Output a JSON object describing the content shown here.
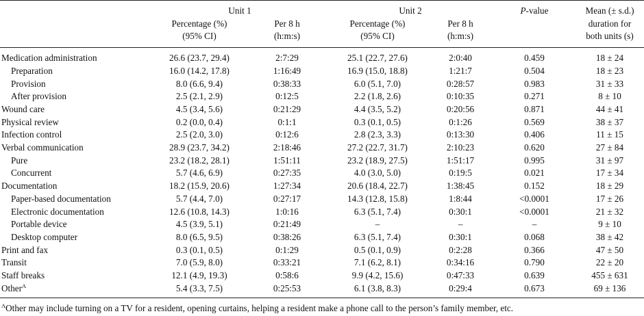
{
  "header": {
    "unit1": "Unit 1",
    "unit2": "Unit 2",
    "pct_l1": "Percentage (%)",
    "pct_l2": "(95% CI)",
    "per_l1": "Per 8 h",
    "per_l2": "(h:m:s)",
    "p_italic": "P",
    "p_rest": "-value",
    "mean_l1": "Mean (± s.d.)",
    "mean_l2": "duration for",
    "mean_l3": "both units (s)"
  },
  "rows": [
    {
      "activity": "Medication administration",
      "u1_pct": "26.6 (23.7, 29.4)",
      "u1_per": "2:7:29",
      "u2_pct": "25.1 (22.7, 27.6)",
      "u2_per": "2:0:40",
      "p": "0.459",
      "mean": "18 ± 24"
    },
    {
      "activity": "Preparation",
      "u1_pct": "16.0 (14.2, 17.8)",
      "u1_per": "1:16:49",
      "u2_pct": "16.9 (15.0, 18.8)",
      "u2_per": "1:21:7",
      "p": "0.504",
      "mean": "18 ± 23"
    },
    {
      "activity": "Provision",
      "u1_pct": "8.0 (6.6, 9.4)",
      "u1_per": "0:38:33",
      "u2_pct": "6.0 (5.1, 7.0)",
      "u2_per": "0:28:57",
      "p": "0.983",
      "mean": "31 ± 33"
    },
    {
      "activity": "After provision",
      "u1_pct": "2.5 (2.1, 2.9)",
      "u1_per": "0:12:5",
      "u2_pct": "2.2 (1.8, 2.6)",
      "u2_per": "0:10:35",
      "p": "0.271",
      "mean": "8 ± 10"
    },
    {
      "activity": "Wound care",
      "u1_pct": "4.5 (3.4, 5.6)",
      "u1_per": "0:21:29",
      "u2_pct": "4.4 (3.5, 5.2)",
      "u2_per": "0:20:56",
      "p": "0.871",
      "mean": "44 ± 41"
    },
    {
      "activity": "Physical review",
      "u1_pct": "0.2 (0.0, 0.4)",
      "u1_per": "0:1:1",
      "u2_pct": "0.3 (0.1, 0.5)",
      "u2_per": "0:1:26",
      "p": "0.569",
      "mean": "38 ± 37"
    },
    {
      "activity": "Infection control",
      "u1_pct": "2.5 (2.0, 3.0)",
      "u1_per": "0:12:6",
      "u2_pct": "2.8 (2.3, 3.3)",
      "u2_per": "0:13:30",
      "p": "0.406",
      "mean": "11 ± 15"
    },
    {
      "activity": "Verbal communication",
      "u1_pct": "28.9 (23.7, 34.2)",
      "u1_per": "2:18:46",
      "u2_pct": "27.2 (22.7, 31.7)",
      "u2_per": "2:10:23",
      "p": "0.620",
      "mean": "27 ± 84"
    },
    {
      "activity": "Pure",
      "u1_pct": "23.2 (18.2, 28.1)",
      "u1_per": "1:51:11",
      "u2_pct": "23.2 (18.9, 27.5)",
      "u2_per": "1:51:17",
      "p": "0.995",
      "mean": "31 ± 97"
    },
    {
      "activity": "Concurrent",
      "u1_pct": "5.7 (4.6, 6.9)",
      "u1_per": "0:27:35",
      "u2_pct": "4.0 (3.0, 5.0)",
      "u2_per": "0:19:5",
      "p": "0.021",
      "mean": "17 ± 34"
    },
    {
      "activity": "Documentation",
      "u1_pct": "18.2 (15.9, 20.6)",
      "u1_per": "1:27:34",
      "u2_pct": "20.6 (18.4, 22.7)",
      "u2_per": "1:38:45",
      "p": "0.152",
      "mean": "18 ± 29"
    },
    {
      "activity": "Paper-based documentation",
      "u1_pct": "5.7 (4.4, 7.0)",
      "u1_per": "0:27:17",
      "u2_pct": "14.3 (12.8, 15.8)",
      "u2_per": "1:8:44",
      "p": "<0.0001",
      "mean": "17 ± 26"
    },
    {
      "activity": "Electronic documentation",
      "u1_pct": "12.6 (10.8, 14.3)",
      "u1_per": "1:0:16",
      "u2_pct": "6.3 (5.1, 7.4)",
      "u2_per": "0:30:1",
      "p": "<0.0001",
      "mean": "21 ± 32"
    },
    {
      "activity": "Portable device",
      "u1_pct": "4.5 (3.9, 5.1)",
      "u1_per": "0:21:49",
      "u2_pct": "–",
      "u2_per": "–",
      "p": "–",
      "mean": "9 ± 10"
    },
    {
      "activity": "Desktop computer",
      "u1_pct": "8.0 (6.5, 9.5)",
      "u1_per": "0:38:26",
      "u2_pct": "6.3 (5.1, 7.4)",
      "u2_per": "0:30:1",
      "p": "0.068",
      "mean": "38 ± 42"
    },
    {
      "activity": "Print and fax",
      "u1_pct": "0.3 (0.1, 0.5)",
      "u1_per": "0:1:29",
      "u2_pct": "0.5 (0.1, 0.9)",
      "u2_per": "0:2:28",
      "p": "0.366",
      "mean": "47 ± 50"
    },
    {
      "activity": "Transit",
      "u1_pct": "7.0 (5.9, 8.0)",
      "u1_per": "0:33:21",
      "u2_pct": "7.1 (6.2, 8.1)",
      "u2_per": "0:34:16",
      "p": "0.790",
      "mean": "22 ± 20"
    },
    {
      "activity": "Staff breaks",
      "u1_pct": "12.1 (4.9, 19.3)",
      "u1_per": "0:58:6",
      "u2_pct": "9.9 (4.2, 15.6)",
      "u2_per": "0:47:33",
      "p": "0.639",
      "mean": "455 ± 631"
    },
    {
      "activity": "Other",
      "activity_sup": "A",
      "u1_pct": "5.4 (3.3, 7.5)",
      "u1_per": "0:25:53",
      "u2_pct": "6.1 (3.8, 8.3)",
      "u2_per": "0:29:4",
      "p": "0.673",
      "mean": "69 ± 136"
    }
  ],
  "footnote": {
    "marker": "A",
    "text": "Other may include turning on a TV for a resident, opening curtains, helping a resident make a phone call to the person’s family member, etc."
  }
}
